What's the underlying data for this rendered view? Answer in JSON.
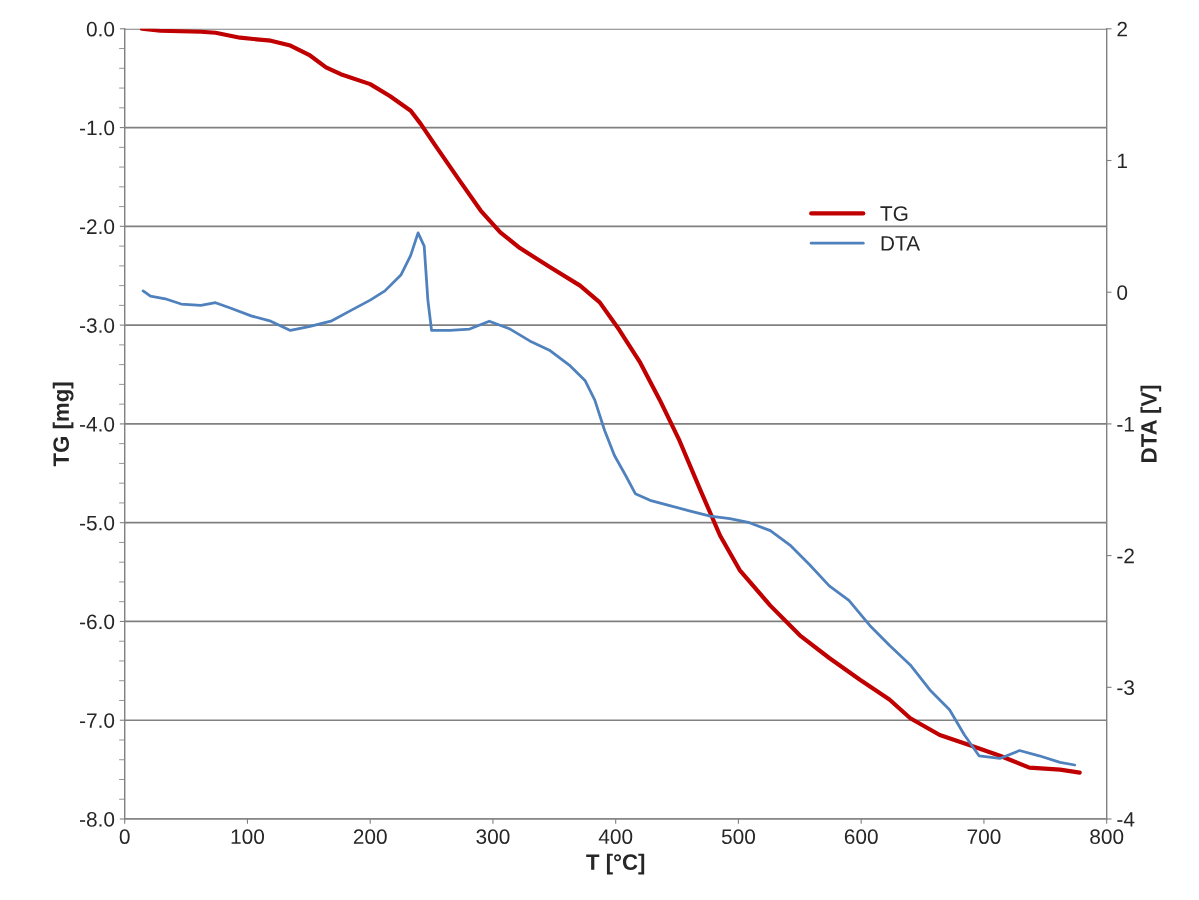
{
  "chart_data": {
    "type": "line",
    "xlabel": "T [°C]",
    "ylabel": "TG [mg]",
    "y2label": "DTA [V]",
    "xlim": [
      0,
      800
    ],
    "xticks": [
      0,
      100,
      200,
      300,
      400,
      500,
      600,
      700,
      800
    ],
    "ylim": [
      -8,
      0
    ],
    "yticks": [
      {
        "value": 0,
        "label": "0.0"
      },
      {
        "value": -1,
        "label": "-1.0"
      },
      {
        "value": -2,
        "label": "-2.0"
      },
      {
        "value": -3,
        "label": "-3.0"
      },
      {
        "value": -4,
        "label": "-4.0"
      },
      {
        "value": -5,
        "label": "-5.0"
      },
      {
        "value": -6,
        "label": "-6.0"
      },
      {
        "value": -7,
        "label": "-7.0"
      },
      {
        "value": -8,
        "label": "-8.0"
      }
    ],
    "y2lim": [
      -4,
      2
    ],
    "y2ticks": [
      2,
      1,
      0,
      -1,
      -2,
      -3,
      -4
    ],
    "grid": "y",
    "legend": "top right",
    "marker": "none",
    "line_style": "solid",
    "series": [
      {
        "name": "TG",
        "color": "#c00000",
        "x": [
          14,
          29,
          62,
          74,
          94,
          119,
          135,
          151,
          164,
          176,
          200,
          216,
          233,
          241,
          253,
          273,
          290,
          306,
          322,
          346,
          371,
          387,
          403,
          420,
          436,
          452,
          469,
          485,
          501,
          526,
          550,
          574,
          599,
          623,
          640,
          664,
          688,
          713,
          737,
          762,
          778
        ],
        "values": [
          0.0,
          -0.02,
          -0.03,
          -0.04,
          -0.09,
          -0.12,
          -0.17,
          -0.27,
          -0.39,
          -0.46,
          -0.56,
          -0.68,
          -0.83,
          -0.96,
          -1.18,
          -1.54,
          -1.84,
          -2.06,
          -2.22,
          -2.41,
          -2.6,
          -2.77,
          -3.05,
          -3.38,
          -3.76,
          -4.17,
          -4.67,
          -5.13,
          -5.48,
          -5.84,
          -6.14,
          -6.37,
          -6.59,
          -6.79,
          -6.98,
          -7.15,
          -7.25,
          -7.36,
          -7.48,
          -7.5,
          -7.53
        ]
      },
      {
        "name": "DTA",
        "color": "#4f81bd",
        "axis": "y2",
        "x": [
          15,
          21,
          33,
          46,
          62,
          74,
          86,
          103,
          119,
          135,
          151,
          168,
          184,
          200,
          212,
          225,
          233,
          239,
          244,
          247,
          250,
          265,
          281,
          297,
          314,
          330,
          346,
          363,
          375,
          383,
          391,
          399,
          408,
          416,
          428,
          444,
          460,
          477,
          493,
          509,
          526,
          542,
          558,
          574,
          590,
          607,
          623,
          640,
          656,
          672,
          684,
          696,
          713,
          729,
          745,
          762,
          774
        ],
        "values": [
          0.01,
          -0.03,
          -0.05,
          -0.09,
          -0.1,
          -0.08,
          -0.12,
          -0.18,
          -0.22,
          -0.29,
          -0.26,
          -0.22,
          -0.14,
          -0.06,
          0.01,
          0.13,
          0.28,
          0.45,
          0.35,
          -0.06,
          -0.29,
          -0.29,
          -0.28,
          -0.22,
          -0.28,
          -0.37,
          -0.44,
          -0.56,
          -0.67,
          -0.82,
          -1.05,
          -1.24,
          -1.39,
          -1.53,
          -1.58,
          -1.62,
          -1.66,
          -1.7,
          -1.72,
          -1.75,
          -1.81,
          -1.92,
          -2.07,
          -2.23,
          -2.34,
          -2.53,
          -2.68,
          -2.83,
          -3.02,
          -3.17,
          -3.36,
          -3.52,
          -3.54,
          -3.48,
          -3.52,
          -3.57,
          -3.59
        ]
      }
    ]
  }
}
